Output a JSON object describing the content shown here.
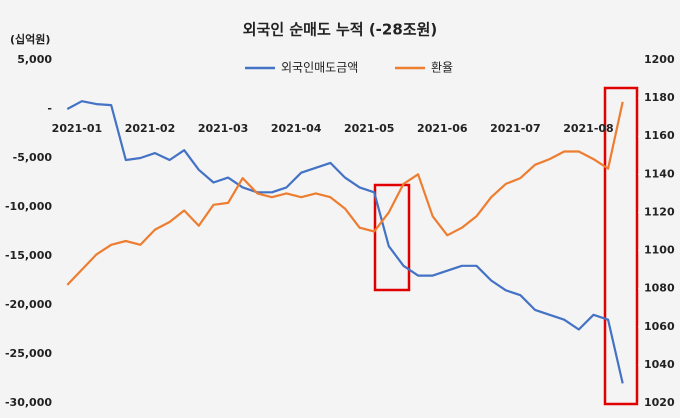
{
  "chart_data": {
    "type": "line",
    "title": "외국인 순매도 누적 (-28조원)",
    "y_label": "(십억원)",
    "categories": [
      null,
      "2021-01",
      null,
      null,
      null,
      null,
      "2021-02",
      null,
      null,
      null,
      null,
      "2021-03",
      null,
      null,
      null,
      null,
      "2021-04",
      null,
      null,
      null,
      null,
      "2021-05",
      null,
      null,
      null,
      null,
      "2021-06",
      null,
      null,
      null,
      null,
      "2021-07",
      null,
      null,
      null,
      null,
      "2021-08",
      null,
      null
    ],
    "series": [
      {
        "name": "외국인매도금액",
        "color": "#4472c4",
        "axis": "y",
        "values": [
          0,
          800,
          500,
          400,
          -5200,
          -5000,
          -4500,
          -5200,
          -4200,
          -6200,
          -7500,
          -7000,
          -8000,
          -8500,
          -8500,
          -8000,
          -6500,
          -6000,
          -5500,
          -7000,
          -8000,
          -8500,
          -14000,
          -16000,
          -17000,
          -17000,
          -16500,
          -16000,
          -16000,
          -17500,
          -18500,
          -19000,
          -20500,
          -21000,
          -21500,
          -22500,
          -21000,
          -21500,
          -28000
        ]
      },
      {
        "name": "환율",
        "color": "#ed7d31",
        "axis": "y2",
        "values": [
          1082,
          1090,
          1098,
          1103,
          1105,
          1103,
          1111,
          1115,
          1121,
          1113,
          1124,
          1125,
          1138,
          1130,
          1128,
          1130,
          1128,
          1130,
          1128,
          1122,
          1112,
          1110,
          1120,
          1135,
          1140,
          1118,
          1108,
          1112,
          1118,
          1128,
          1135,
          1138,
          1145,
          1148,
          1152,
          1152,
          1148,
          1143,
          1178
        ]
      }
    ],
    "ylim": [
      -30000,
      5000
    ],
    "yticks": [
      {
        "value": 5000,
        "label": "5,000"
      },
      {
        "value": 0,
        "label": "-"
      },
      {
        "value": -5000,
        "label": "-5,000"
      },
      {
        "value": -10000,
        "label": "-10,000"
      },
      {
        "value": -15000,
        "label": "-15,000"
      },
      {
        "value": -20000,
        "label": "-20,000"
      },
      {
        "value": -25000,
        "label": "-25,000"
      },
      {
        "value": -30000,
        "label": "-30,000"
      }
    ],
    "y2lim": [
      1020,
      1200
    ],
    "y2ticks": [
      1020,
      1040,
      1060,
      1080,
      1100,
      1120,
      1140,
      1160,
      1180,
      1200
    ]
  }
}
